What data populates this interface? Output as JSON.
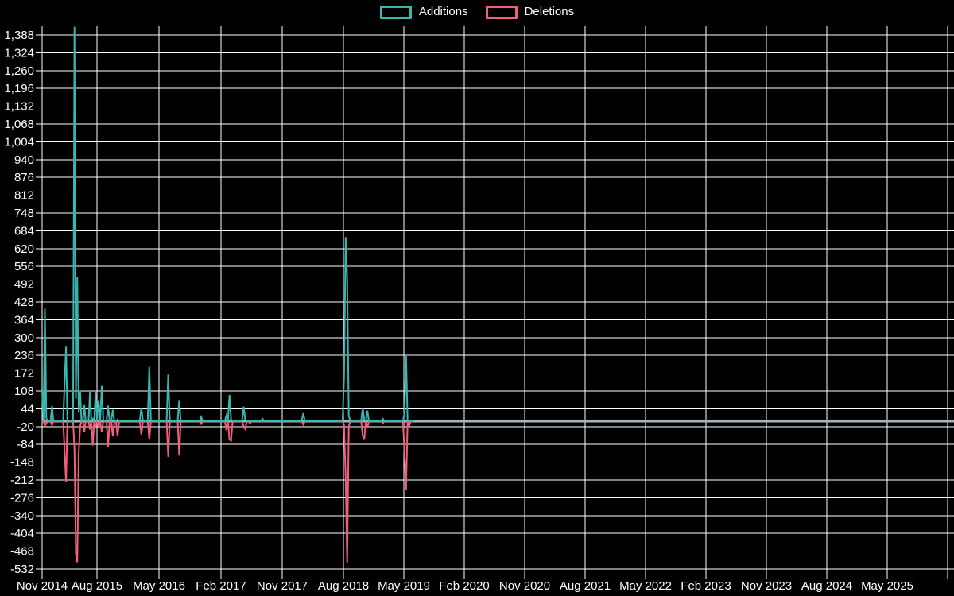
{
  "legend_items": [
    {
      "label": "Additions",
      "color": "#3ab5af"
    },
    {
      "label": "Deletions",
      "color": "#f25f7c"
    }
  ],
  "colors": {
    "background": "#000000",
    "grid": "#ffffff",
    "axis_text": "#ffffff",
    "zero_line": "#a7b5bd",
    "additions": "#3ab5af",
    "deletions": "#f25f7c"
  },
  "chart_data": {
    "type": "line",
    "description": "Weekly code additions (positive, teal) and deletions (negative, pink) over time; flat at zero outside spike clusters; activity ends mid-2019 while axis extends to 2025+",
    "grid": true,
    "legend_position": "top-center",
    "x_axis": {
      "tick_labels": [
        "Nov 2014",
        "Aug 2015",
        "May 2016",
        "Feb 2017",
        "Nov 2017",
        "Aug 2018",
        "May 2019",
        "Feb 2020",
        "Nov 2020",
        "Aug 2021",
        "May 2022",
        "Feb 2023",
        "Nov 2023",
        "Aug 2024",
        "May 2025"
      ]
    },
    "y_axis": {
      "min": -532,
      "max": 1388,
      "step": 64,
      "tick_labels": [
        "1,388",
        "1,324",
        "1,260",
        "1,196",
        "1,132",
        "1,068",
        "1,004",
        "940",
        "876",
        "812",
        "748",
        "684",
        "620",
        "556",
        "492",
        "428",
        "364",
        "300",
        "236",
        "172",
        "108",
        "44",
        "-20",
        "-84",
        "-148",
        "-212",
        "-276",
        "-340",
        "-404",
        "-468",
        "-532"
      ]
    },
    "series_names": [
      "Additions",
      "Deletions"
    ],
    "baseline": 0,
    "data_start": "2014-11-01",
    "data_end": "2019-06-15",
    "weeks": [
      [
        "2014-11-01",
        114,
        -5
      ],
      [
        "2014-11-13",
        404,
        -17
      ],
      [
        "2014-11-23",
        10,
        -8
      ],
      [
        "2014-12-22",
        54,
        -15
      ],
      [
        "2015-02-20",
        140,
        -112
      ],
      [
        "2015-03-02",
        267,
        -218
      ],
      [
        "2015-04-08",
        1417,
        -100
      ],
      [
        "2015-04-15",
        80,
        -481
      ],
      [
        "2015-04-22",
        519,
        -507
      ],
      [
        "2015-04-29",
        30,
        -117
      ],
      [
        "2015-05-11",
        109,
        -20
      ],
      [
        "2015-05-30",
        57,
        -40
      ],
      [
        "2015-06-27",
        105,
        -30
      ],
      [
        "2015-07-09",
        8,
        -88
      ],
      [
        "2015-07-25",
        105,
        -25
      ],
      [
        "2015-08-10",
        75,
        -20
      ],
      [
        "2015-08-22",
        126,
        -40
      ],
      [
        "2015-09-16",
        55,
        -95
      ],
      [
        "2015-10-07",
        40,
        -55
      ],
      [
        "2015-11-01",
        5,
        -55
      ],
      [
        "2016-02-10",
        48,
        -48
      ],
      [
        "2016-03-16",
        195,
        -66
      ],
      [
        "2016-06-12",
        167,
        -129
      ],
      [
        "2016-07-30",
        75,
        -124
      ],
      [
        "2016-11-04",
        15,
        -10
      ],
      [
        "2017-02-25",
        20,
        -33
      ],
      [
        "2017-03-12",
        94,
        -67
      ],
      [
        "2017-03-21",
        5,
        -70
      ],
      [
        "2017-05-11",
        52,
        -20
      ],
      [
        "2017-05-20",
        4,
        -29
      ],
      [
        "2017-06-12",
        2,
        -8
      ],
      [
        "2017-08-04",
        8,
        -2
      ],
      [
        "2018-02-01",
        28,
        -12
      ],
      [
        "2018-08-06",
        162,
        -15
      ],
      [
        "2018-08-14",
        661,
        -205
      ],
      [
        "2018-08-21",
        509,
        -510
      ],
      [
        "2018-08-28",
        20,
        -20
      ],
      [
        "2018-10-26",
        47,
        -53
      ],
      [
        "2018-11-06",
        4,
        -67
      ],
      [
        "2018-11-20",
        37,
        -25
      ],
      [
        "2019-01-28",
        8,
        -8
      ],
      [
        "2019-05-05",
        30,
        -115
      ],
      [
        "2019-05-14",
        237,
        -248
      ],
      [
        "2019-05-24",
        2,
        -20
      ]
    ]
  }
}
